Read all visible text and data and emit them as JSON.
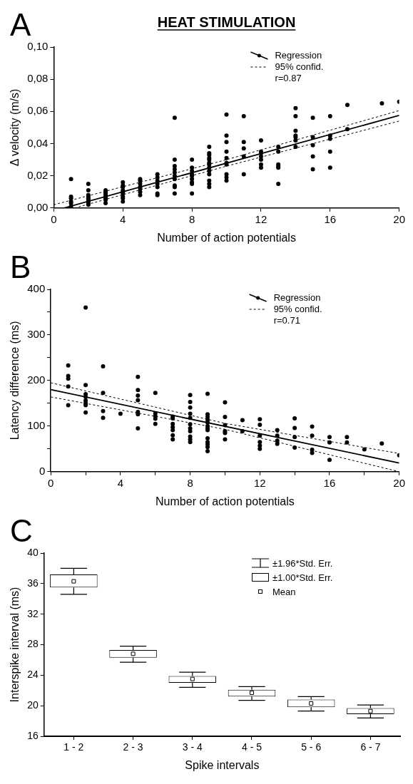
{
  "chart_data": [
    {
      "type": "scatter",
      "title": "HEAT STIMULATION",
      "xlabel": "Number of action potentials",
      "ylabel": "Δ velocity (m/s)",
      "annotations": [
        "A",
        "r=0.87"
      ],
      "legend": "top right",
      "xlim": [
        0,
        20
      ],
      "xticks": [
        0,
        4,
        8,
        12,
        16,
        20
      ],
      "ylim": [
        0,
        0.1
      ],
      "yticks": [
        {
          "value": 0,
          "label": "0,00"
        },
        {
          "value": 0.02,
          "label": "0,02"
        },
        {
          "value": 0.04,
          "label": "0,04"
        },
        {
          "value": 0.06,
          "label": "0,06"
        },
        {
          "value": 0.08,
          "label": "0,08"
        },
        {
          "value": 0.1,
          "label": "0,10"
        }
      ],
      "series": [
        {
          "type": "scatter",
          "marker": "circle",
          "color": "#000000",
          "x": [
            1,
            1,
            1,
            1,
            1,
            1,
            2,
            2,
            2,
            2,
            2,
            2,
            2,
            2,
            2,
            3,
            3,
            3,
            3,
            3,
            3,
            3,
            3,
            4,
            4,
            4,
            4,
            4,
            4,
            4,
            4,
            4,
            5,
            5,
            5,
            5,
            5,
            5,
            5,
            6,
            6,
            6,
            6,
            6,
            6,
            6,
            7,
            7,
            7,
            7,
            7,
            7,
            7,
            7,
            7,
            7,
            8,
            8,
            8,
            8,
            8,
            8,
            8,
            8,
            8,
            9,
            9,
            9,
            9,
            9,
            9,
            9,
            9,
            9,
            9,
            9,
            9,
            9,
            10,
            10,
            10,
            10,
            10,
            10,
            10,
            10,
            10,
            10,
            11,
            11,
            11,
            11,
            11,
            12,
            12,
            12,
            12,
            12,
            12,
            12,
            13,
            13,
            13,
            13,
            13,
            13,
            14,
            14,
            14,
            14,
            14,
            14,
            14,
            15,
            15,
            15,
            15,
            15,
            16,
            16,
            16,
            16,
            16,
            17,
            17,
            19,
            20
          ],
          "values": [
            0.018,
            0.007,
            0.006,
            0.004,
            0.003,
            0.001,
            0.015,
            0.011,
            0.008,
            0.007,
            0.006,
            0.005,
            0.004,
            0.003,
            0.002,
            0.011,
            0.01,
            0.009,
            0.008,
            0.007,
            0.006,
            0.005,
            0.003,
            0.016,
            0.014,
            0.013,
            0.011,
            0.01,
            0.009,
            0.007,
            0.006,
            0.004,
            0.018,
            0.017,
            0.015,
            0.013,
            0.012,
            0.01,
            0.008,
            0.021,
            0.019,
            0.017,
            0.015,
            0.013,
            0.009,
            0.008,
            0.056,
            0.03,
            0.026,
            0.024,
            0.022,
            0.02,
            0.018,
            0.014,
            0.013,
            0.009,
            0.03,
            0.025,
            0.023,
            0.021,
            0.02,
            0.018,
            0.016,
            0.015,
            0.009,
            0.038,
            0.034,
            0.033,
            0.031,
            0.03,
            0.028,
            0.027,
            0.025,
            0.023,
            0.021,
            0.017,
            0.015,
            0.013,
            0.058,
            0.045,
            0.041,
            0.035,
            0.031,
            0.028,
            0.027,
            0.021,
            0.019,
            0.017,
            0.057,
            0.041,
            0.037,
            0.032,
            0.021,
            0.042,
            0.035,
            0.034,
            0.032,
            0.03,
            0.027,
            0.025,
            0.038,
            0.035,
            0.027,
            0.026,
            0.025,
            0.015,
            0.062,
            0.057,
            0.048,
            0.045,
            0.044,
            0.042,
            0.038,
            0.056,
            0.044,
            0.039,
            0.032,
            0.024,
            0.057,
            0.045,
            0.043,
            0.035,
            0.025,
            0.064,
            0.049,
            0.065,
            0.066
          ]
        },
        {
          "type": "line",
          "name": "Regression",
          "color": "#000000",
          "line_style": "solid",
          "x": [
            0.6,
            20
          ],
          "values": [
            0,
            0.0575
          ]
        },
        {
          "type": "line",
          "name": "95% confid.",
          "color": "#000000",
          "line_style": "dashed",
          "x": [
            0,
            10,
            20
          ],
          "values": [
            0.002,
            0.03,
            0.0605
          ]
        },
        {
          "type": "line",
          "color": "#000000",
          "line_style": "dashed",
          "x": [
            1.2,
            10,
            20
          ],
          "values": [
            0,
            0.026,
            0.054
          ]
        }
      ]
    },
    {
      "type": "scatter",
      "xlabel": "Number of action potentials",
      "ylabel": "Latency difference (ms)",
      "annotations": [
        "B",
        "r=0.71"
      ],
      "legend": "top right",
      "xlim": [
        0,
        20
      ],
      "xticks": [
        0,
        {
          "value": 2,
          "label": null
        },
        4,
        {
          "value": 6,
          "label": null
        },
        8,
        {
          "value": 10,
          "label": null
        },
        12,
        {
          "value": 14,
          "label": null
        },
        16,
        {
          "value": 18,
          "label": null
        },
        20
      ],
      "ylim": [
        0,
        400
      ],
      "yticks": [
        0,
        {
          "value": 50,
          "label": null
        },
        100,
        {
          "value": 150,
          "label": null
        },
        200,
        {
          "value": 250,
          "label": null
        },
        300,
        {
          "value": 350,
          "label": null
        },
        400
      ],
      "series": [
        {
          "type": "scatter",
          "marker": "circle",
          "color": "#000000",
          "x": [
            1,
            1,
            1,
            1,
            1,
            2,
            2,
            2,
            2,
            2,
            2,
            2,
            2,
            3,
            3,
            3,
            3,
            4,
            5,
            5,
            5,
            5,
            5,
            5,
            5,
            6,
            6,
            6,
            6,
            6,
            7,
            7,
            7,
            7,
            7,
            7,
            7,
            8,
            8,
            8,
            8,
            8,
            8,
            8,
            8,
            8,
            8,
            8,
            9,
            9,
            9,
            9,
            9,
            9,
            9,
            9,
            9,
            9,
            9,
            9,
            9,
            10,
            10,
            10,
            10,
            10,
            10,
            11,
            11,
            12,
            12,
            12,
            12,
            12,
            12,
            13,
            13,
            13,
            13,
            14,
            14,
            14,
            14,
            15,
            15,
            15,
            15,
            16,
            16,
            16,
            17,
            17,
            18,
            19,
            20
          ],
          "values": [
            233,
            210,
            204,
            187,
            146,
            360,
            190,
            170,
            164,
            156,
            150,
            146,
            130,
            231,
            173,
            133,
            118,
            127,
            208,
            179,
            167,
            157,
            131,
            126,
            95,
            173,
            128,
            122,
            116,
            105,
            121,
            117,
            105,
            98,
            91,
            80,
            71,
            168,
            153,
            141,
            127,
            118,
            104,
            95,
            89,
            77,
            71,
            65,
            171,
            126,
            120,
            114,
            108,
            100,
            95,
            91,
            73,
            65,
            60,
            54,
            45,
            152,
            120,
            102,
            89,
            85,
            71,
            113,
            89,
            115,
            103,
            79,
            65,
            57,
            50,
            91,
            79,
            68,
            61,
            117,
            96,
            76,
            53,
            99,
            79,
            48,
            41,
            76,
            64,
            26,
            76,
            64,
            49,
            62,
            36
          ]
        },
        {
          "type": "line",
          "name": "Regression",
          "color": "#000000",
          "line_style": "solid",
          "x": [
            0,
            20
          ],
          "values": [
            180,
            19
          ]
        },
        {
          "type": "line",
          "name": "95% confid.",
          "color": "#000000",
          "line_style": "dashed",
          "x": [
            0,
            10,
            20
          ],
          "values": [
            195,
            106,
            40
          ]
        },
        {
          "type": "line",
          "color": "#000000",
          "line_style": "dashed",
          "x": [
            0,
            10,
            20
          ],
          "values": [
            164,
            93,
            0
          ]
        }
      ]
    },
    {
      "type": "box",
      "xlabel": "Spike intervals",
      "ylabel": "Interspike interval (ms)",
      "annotations": [
        "C",
        "±1.96*Std. Err.",
        "±1.00*Std. Err.",
        "Mean"
      ],
      "color": "#000000",
      "categories": [
        "1 - 2",
        "2 - 3",
        "3 - 4",
        "4 - 5",
        "5 - 6",
        "6 - 7"
      ],
      "ylim": [
        16,
        40
      ],
      "yticks": [
        16,
        20,
        24,
        28,
        32,
        36,
        40
      ],
      "boxes": [
        {
          "low": 34.6,
          "q1": 35.5,
          "q3": 37.2,
          "high": 38.0,
          "mean": 36.3
        },
        {
          "low": 25.7,
          "q1": 26.3,
          "q3": 27.3,
          "high": 27.8,
          "mean": 26.8
        },
        {
          "low": 22.4,
          "q1": 23.0,
          "q3": 23.9,
          "high": 24.4,
          "mean": 23.5
        },
        {
          "low": 20.7,
          "q1": 21.2,
          "q3": 22.1,
          "high": 22.5,
          "mean": 21.7
        },
        {
          "low": 19.3,
          "q1": 19.8,
          "q3": 20.8,
          "high": 21.2,
          "mean": 20.3
        },
        {
          "low": 18.4,
          "q1": 18.9,
          "q3": 19.7,
          "high": 20.1,
          "mean": 19.3
        }
      ]
    }
  ]
}
